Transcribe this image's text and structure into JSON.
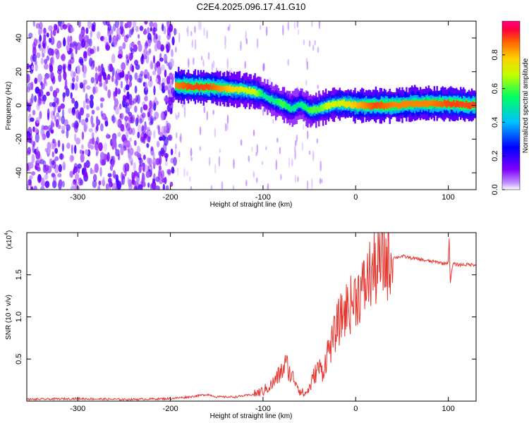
{
  "title": "C2E4.2025.096.17.41.G10",
  "chart_data": [
    {
      "type": "heatmap",
      "name": "spectrogram",
      "xlabel": "Height of straight line (km)",
      "ylabel": "Frequency (Hz)",
      "xlim": [
        -355,
        130
      ],
      "ylim": [
        -50,
        50
      ],
      "xticks": [
        -300,
        -200,
        -100,
        0,
        100
      ],
      "yticks": [
        -40,
        -20,
        0,
        20,
        40
      ],
      "colorbar": {
        "label": "Normalized spectral amplitude",
        "range": [
          0,
          1
        ],
        "ticks": [
          0.0,
          0.2,
          0.4,
          0.6,
          0.8
        ],
        "tick_labels": [
          "0.0",
          "0.2",
          "0.4",
          "0.6",
          "0.8"
        ],
        "colors": [
          "#ffffff",
          "#8000ff",
          "#0000ff",
          "#00c0ff",
          "#00ff60",
          "#c0ff00",
          "#ffd000",
          "#ff6000",
          "#ff0040",
          "#ff0080"
        ]
      },
      "ridge": {
        "x": [
          -195,
          -180,
          -160,
          -140,
          -120,
          -110,
          -100,
          -90,
          -80,
          -70,
          -60,
          -50,
          -40,
          -30,
          -20,
          -10,
          0,
          20,
          40,
          60,
          80,
          100,
          130
        ],
        "y": [
          12,
          11,
          11,
          10,
          9,
          8,
          6,
          3,
          1,
          -2,
          1,
          -3,
          -2,
          0,
          1,
          1,
          0,
          0,
          0,
          1,
          1,
          1,
          0
        ],
        "peak": [
          0.85,
          0.9,
          0.9,
          0.8,
          0.7,
          0.7,
          0.5,
          0.5,
          0.6,
          0.5,
          0.5,
          0.6,
          0.6,
          0.7,
          0.7,
          0.75,
          0.8,
          0.9,
          0.85,
          0.85,
          0.85,
          0.9,
          0.9
        ]
      },
      "noise_region_x": [
        -355,
        -195
      ]
    },
    {
      "type": "line",
      "name": "snr",
      "xlabel": "Height of straight line (km)",
      "ylabel": "SNR (10 * v/v)",
      "multiplier_label": "(x10",
      "multiplier_exponent": "4",
      "multiplier_close": ")",
      "xlim": [
        -355,
        130
      ],
      "ylim": [
        0,
        2.0
      ],
      "xticks": [
        -300,
        -200,
        -100,
        0,
        100
      ],
      "yticks": [
        0.5,
        1.0,
        1.5
      ],
      "ytick_labels": [
        "0.5",
        "1.0",
        "1.5"
      ],
      "color": "#e8352e",
      "series": {
        "x": [
          -355,
          -300,
          -250,
          -200,
          -180,
          -160,
          -150,
          -130,
          -110,
          -100,
          -90,
          -80,
          -75,
          -70,
          -65,
          -60,
          -55,
          -50,
          -45,
          -40,
          -35,
          -30,
          -25,
          -20,
          -15,
          -10,
          -5,
          0,
          5,
          10,
          15,
          20,
          25,
          30,
          40,
          50,
          60,
          70,
          80,
          90,
          95,
          100,
          101,
          102,
          105,
          110,
          120,
          130
        ],
        "y": [
          0.02,
          0.03,
          0.02,
          0.03,
          0.05,
          0.08,
          0.05,
          0.05,
          0.08,
          0.12,
          0.2,
          0.35,
          0.45,
          0.3,
          0.25,
          0.12,
          0.08,
          0.15,
          0.3,
          0.4,
          0.35,
          0.6,
          0.7,
          0.9,
          1.0,
          1.1,
          1.15,
          1.25,
          1.3,
          1.35,
          1.5,
          1.55,
          1.6,
          1.65,
          1.7,
          1.72,
          1.7,
          1.68,
          1.66,
          1.65,
          1.63,
          1.65,
          1.95,
          1.4,
          1.63,
          1.62,
          1.62,
          1.62
        ]
      }
    }
  ]
}
